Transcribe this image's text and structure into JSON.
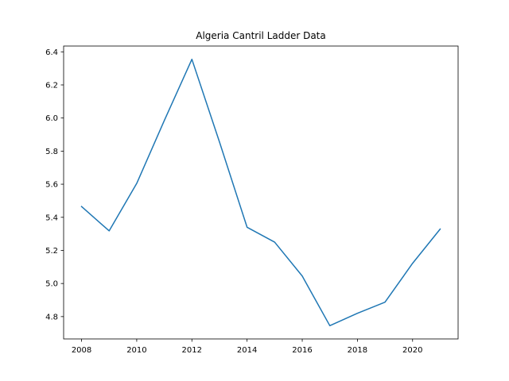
{
  "chart_data": {
    "type": "line",
    "title": "Algeria Cantril Ladder Data",
    "xlabel": "",
    "ylabel": "",
    "x": [
      2008,
      2009,
      2010,
      2011,
      2012,
      2013,
      2014,
      2015,
      2016,
      2017,
      2018,
      2019,
      2020,
      2021
    ],
    "series": [
      {
        "values": [
          5.465,
          5.318,
          5.605,
          5.985,
          6.355,
          5.855,
          5.34,
          5.25,
          5.045,
          4.745,
          4.82,
          4.887,
          5.122,
          5.329
        ],
        "color": "#1f77b4"
      }
    ],
    "xlim": [
      2007.35,
      2021.65
    ],
    "ylim": [
      4.665,
      6.435
    ],
    "xticks": [
      2008,
      2010,
      2012,
      2014,
      2016,
      2018,
      2020
    ],
    "yticks": [
      4.8,
      5.0,
      5.2,
      5.4,
      5.6,
      5.8,
      6.0,
      6.2,
      6.4
    ],
    "ytick_labels": [
      "4.8",
      "5.0",
      "5.2",
      "5.4",
      "5.6",
      "5.8",
      "6.0",
      "6.2",
      "6.4"
    ],
    "grid": false,
    "legend": "none"
  }
}
